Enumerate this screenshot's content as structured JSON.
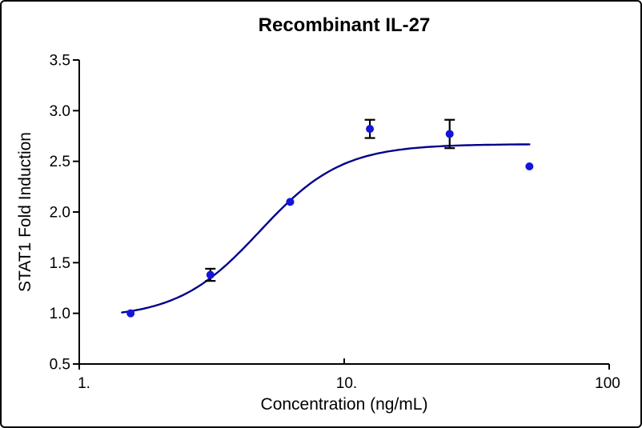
{
  "chart_data": {
    "type": "scatter",
    "title": "Recombinant IL-27",
    "xlabel": "Concentration (ng/mL)",
    "ylabel": "STAT1 Fold Induction",
    "x_scale": "log",
    "xlim": [
      1,
      100
    ],
    "ylim": [
      0.5,
      3.5
    ],
    "grid": false,
    "legend": null,
    "xticks": [
      {
        "value": 1,
        "label": "1."
      },
      {
        "value": 10,
        "label": "10."
      },
      {
        "value": 100,
        "label": "100"
      }
    ],
    "yticks": [
      {
        "value": 0.5,
        "label": "0.5"
      },
      {
        "value": 1.0,
        "label": "1.0"
      },
      {
        "value": 1.5,
        "label": "1.5"
      },
      {
        "value": 2.0,
        "label": "2.0"
      },
      {
        "value": 2.5,
        "label": "2.5"
      },
      {
        "value": 3.0,
        "label": "3.0"
      },
      {
        "value": 3.5,
        "label": "3.5"
      }
    ],
    "series": [
      {
        "name": "STAT1 fold induction",
        "points": [
          {
            "x": 1.5625,
            "y": 1.0,
            "err": 0
          },
          {
            "x": 3.125,
            "y": 1.38,
            "err": 0.06
          },
          {
            "x": 6.25,
            "y": 2.1,
            "err": 0
          },
          {
            "x": 12.5,
            "y": 2.82,
            "err": 0.09
          },
          {
            "x": 25,
            "y": 2.77,
            "err": 0.14
          },
          {
            "x": 50,
            "y": 2.45,
            "err": 0
          }
        ]
      }
    ],
    "fit_curve": {
      "model": "4PL",
      "bottom": 0.95,
      "top": 2.67,
      "ec50": 4.8,
      "hill": 2.8,
      "x_start": 1.45,
      "x_end": 50
    },
    "colors": {
      "point": "#1414dc",
      "curve": "#00008b",
      "axis": "#000000",
      "error_bar": "#000000",
      "frame_border": "#000000",
      "background": "#ffffff"
    }
  }
}
